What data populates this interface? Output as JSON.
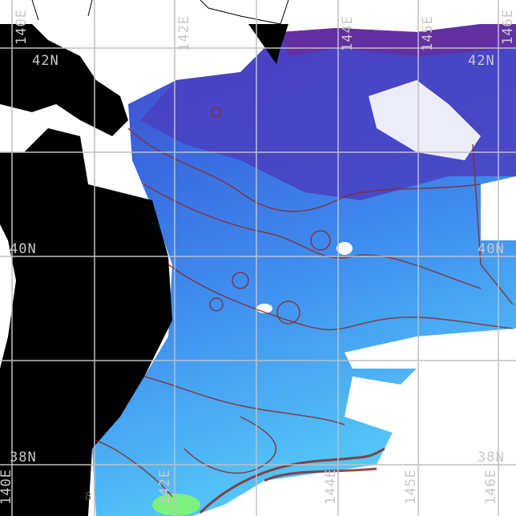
{
  "map": {
    "type": "sea surface field map with contours",
    "colors": {
      "land": "#000000",
      "no_data": "#ffffff",
      "grid": "#c0c0c0",
      "contour": "#8b2a2a",
      "ocean_cold": "#5a2a9a",
      "ocean_mid": "#3a6ae0",
      "ocean_warm": "#55c8f8",
      "ocean_hot": "#7ef07e"
    },
    "lat_labels_left": [
      "42N",
      "40N",
      "38N"
    ],
    "lat_labels_right": [
      "42N",
      "40N",
      "38N"
    ],
    "lon_labels_top": [
      "140E",
      "142E",
      "144E",
      "145E",
      "146E"
    ],
    "lon_labels_bottom": [
      "140E",
      "142E",
      "144E",
      "145E",
      "146E"
    ],
    "contour_label": "8"
  }
}
